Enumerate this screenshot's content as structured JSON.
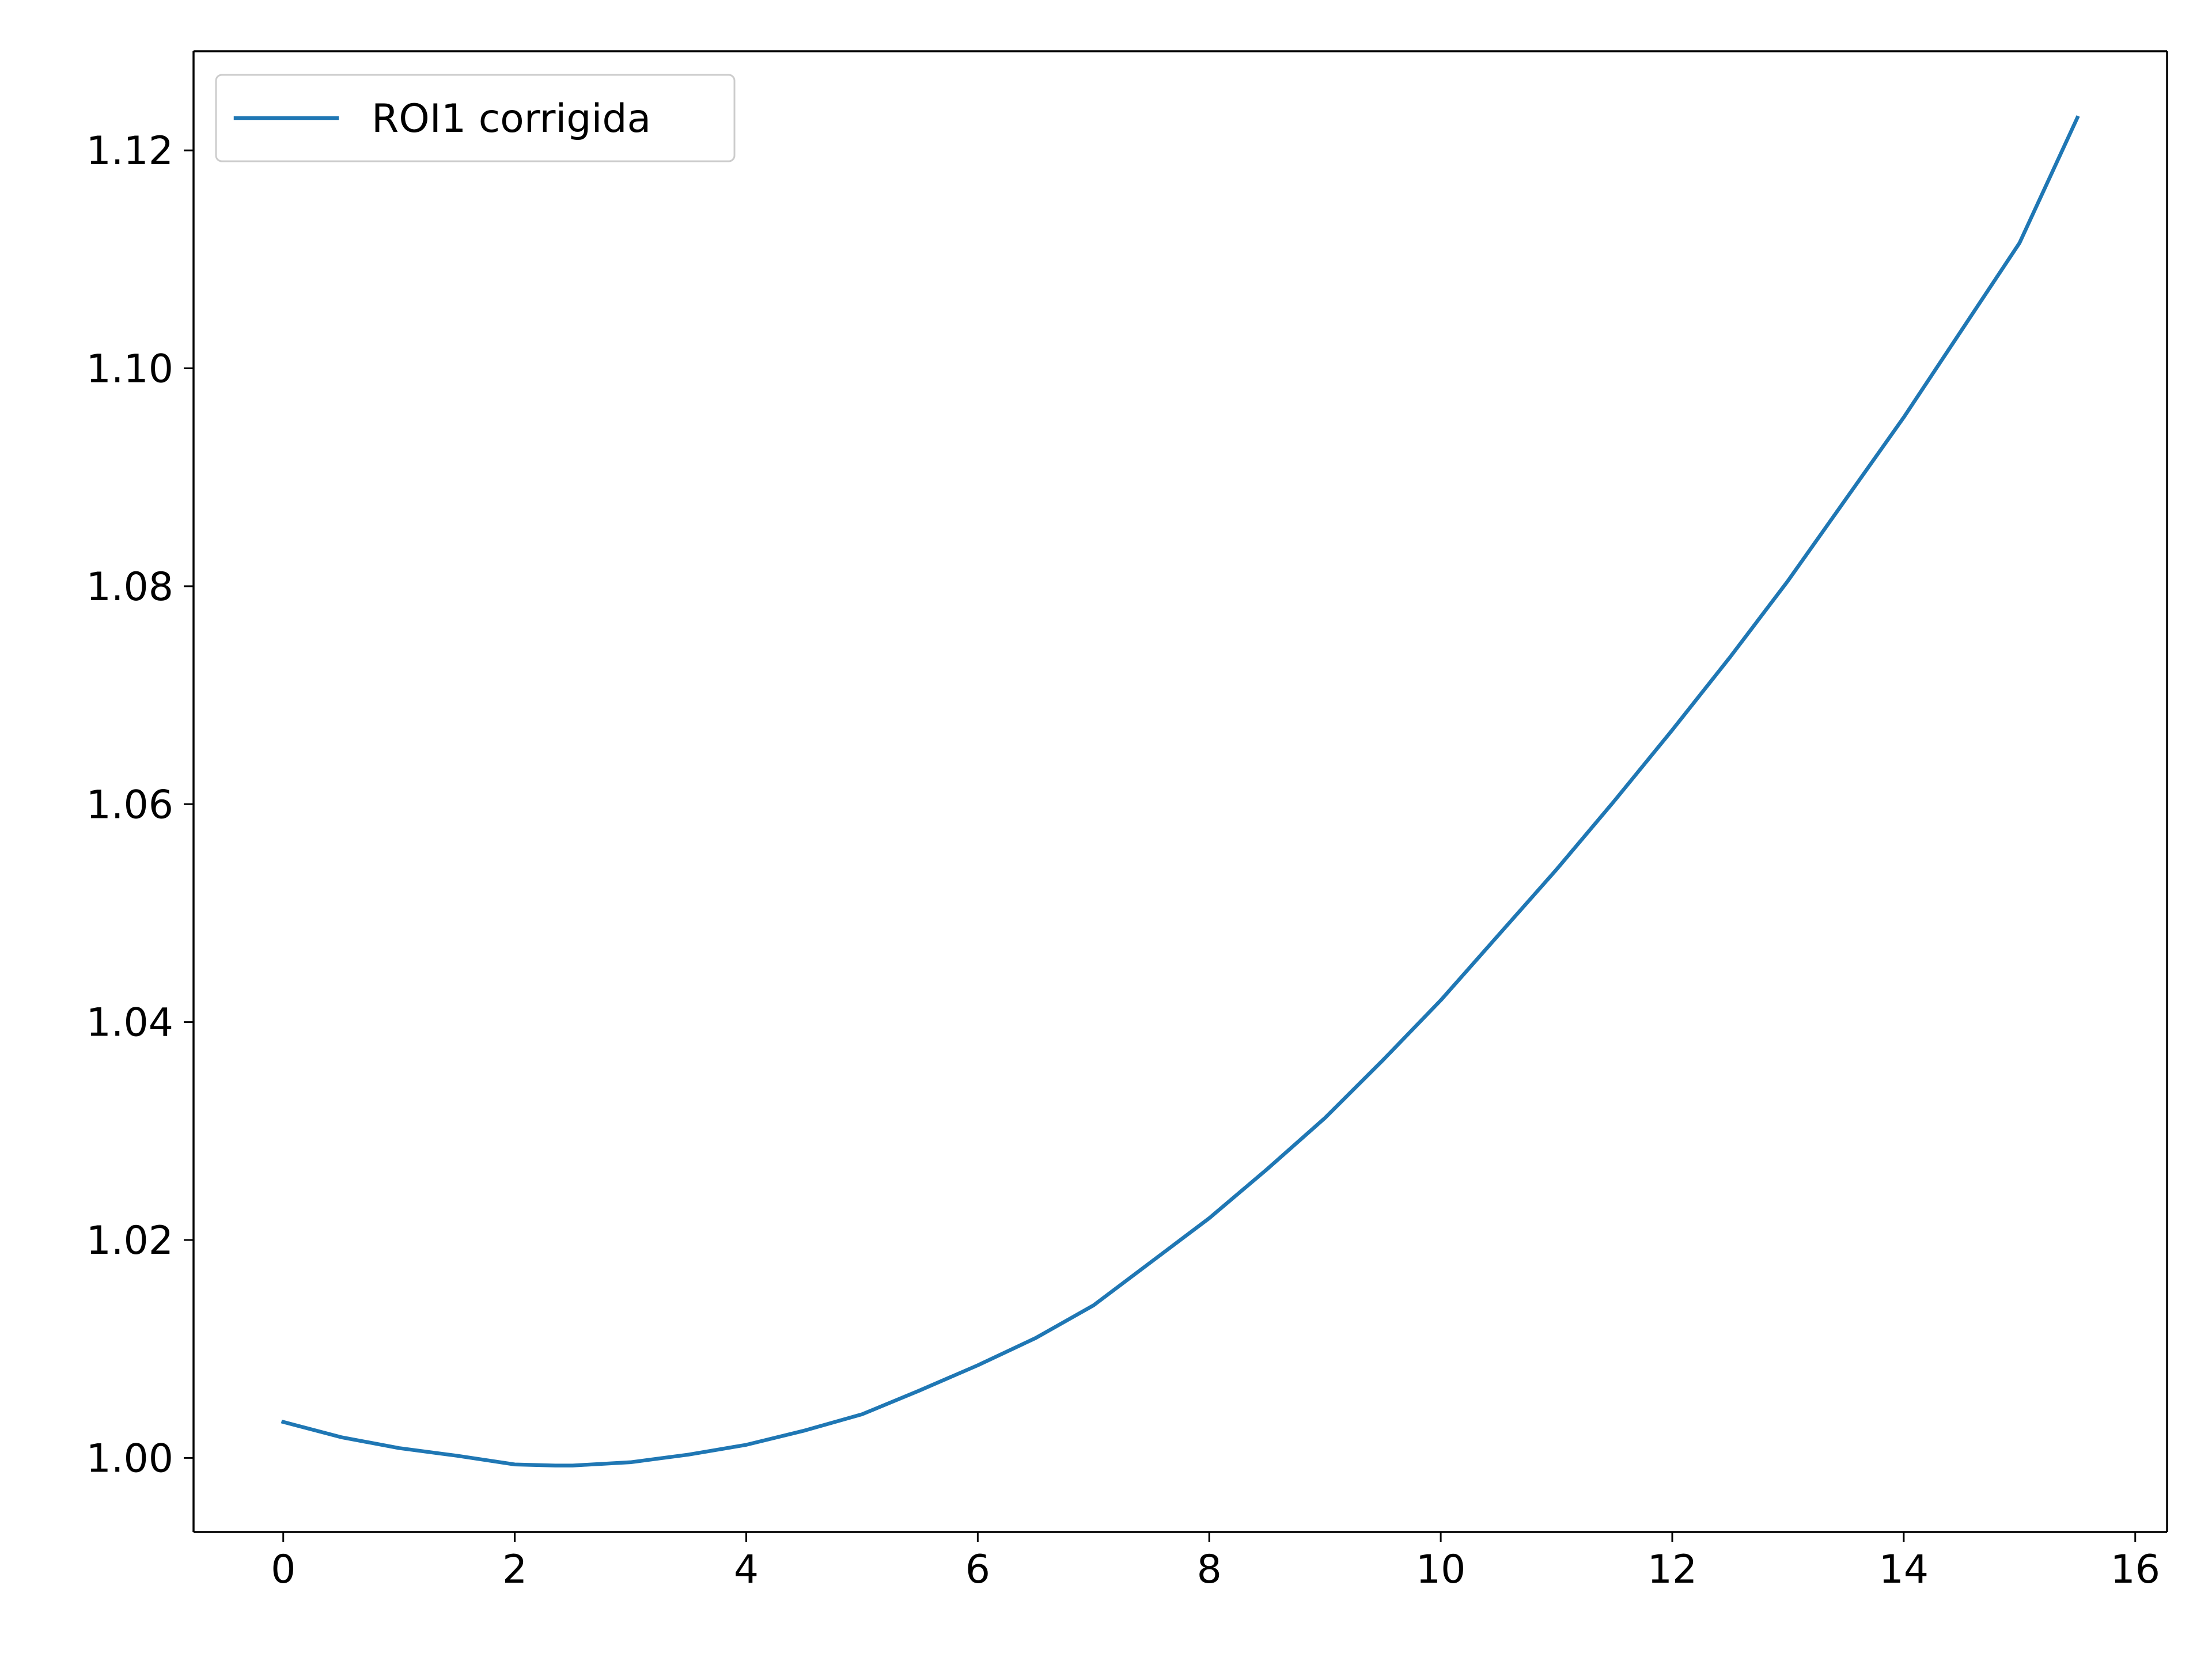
{
  "chart_data": {
    "type": "line",
    "title": "",
    "xlabel": "",
    "ylabel": "",
    "xlim": [
      -0.775,
      16.275
    ],
    "ylim": [
      0.9932,
      1.1291
    ],
    "xticks": [
      0,
      2,
      4,
      6,
      8,
      10,
      12,
      14,
      16
    ],
    "xtick_labels": [
      "0",
      "2",
      "4",
      "6",
      "8",
      "10",
      "12",
      "14",
      "16"
    ],
    "yticks": [
      1.0,
      1.02,
      1.04,
      1.06,
      1.08,
      1.1,
      1.12
    ],
    "ytick_labels": [
      "1.00",
      "1.02",
      "1.04",
      "1.06",
      "1.08",
      "1.10",
      "1.12"
    ],
    "grid": false,
    "legend": {
      "position": "upper-left",
      "entries": [
        "ROI1 corrigida"
      ]
    },
    "series": [
      {
        "name": "ROI1 corrigida",
        "color": "#1f77b4",
        "x": [
          0,
          0.5,
          1,
          1.5,
          2,
          2.35,
          2.5,
          3,
          3.5,
          4,
          4.5,
          5,
          5.5,
          6,
          6.5,
          7,
          7.5,
          8,
          8.5,
          9,
          9.5,
          10,
          10.5,
          11,
          11.5,
          12,
          12.5,
          13,
          13.5,
          14,
          14.5,
          15,
          15.5
        ],
        "y": [
          1.0033,
          1.0019,
          1.0009,
          1.0002,
          0.9994,
          0.9993,
          0.9993,
          0.9996,
          1.0003,
          1.0012,
          1.0025,
          1.004,
          1.0062,
          1.0085,
          1.011,
          1.014,
          1.018,
          1.022,
          1.0265,
          1.0312,
          1.0365,
          1.042,
          1.048,
          1.054,
          1.0603,
          1.0668,
          1.0735,
          1.0805,
          1.088,
          1.0955,
          1.1035,
          1.1115,
          1.123
        ]
      }
    ]
  }
}
